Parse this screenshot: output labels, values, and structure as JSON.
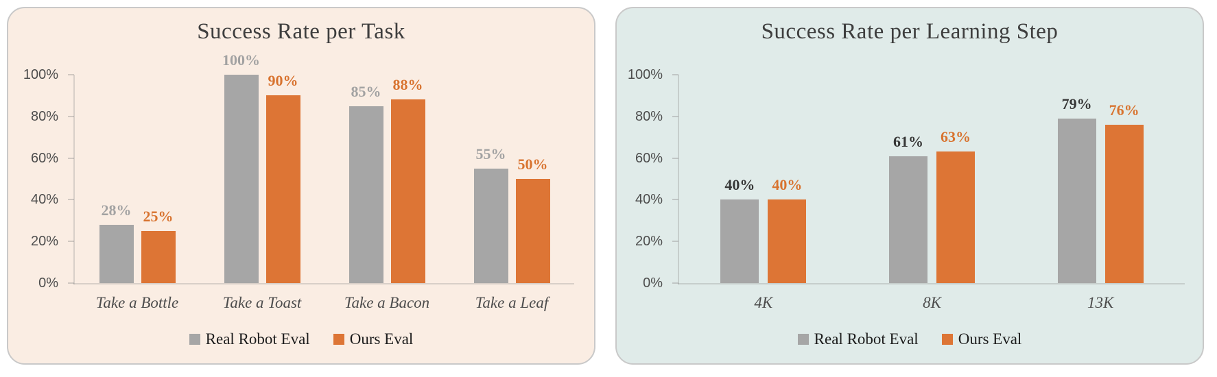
{
  "page": {
    "background": "#FFFFFF"
  },
  "colors": {
    "series_gray": "#A6A6A6",
    "series_orange": "#DD7535",
    "left_card_bg": "#FAEDE3",
    "right_card_bg": "#E0EBE9",
    "card_border": "#C9C9C9",
    "title_text": "#3E3E3E",
    "axis_tick_text": "#4D4D4D",
    "category_text": "#4D4D4D",
    "legend_text": "#1C1C1C"
  },
  "chart_data": [
    {
      "type": "bar",
      "title": "Success Rate per Task",
      "categories": [
        "Take a Bottle",
        "Take a Toast",
        "Take a Bacon",
        "Take a Leaf"
      ],
      "series": [
        {
          "name": "Real Robot Eval",
          "color": "#A6A6A6",
          "label_color": "#A2A2A2",
          "values": [
            28,
            100,
            85,
            55
          ]
        },
        {
          "name": "Ours Eval",
          "color": "#DD7535",
          "label_color": "#D8732F",
          "values": [
            25,
            90,
            88,
            50
          ]
        }
      ],
      "data_label_suffix": "%",
      "ylim": [
        0,
        100
      ],
      "yticks": [
        0,
        20,
        40,
        60,
        80,
        100
      ],
      "ytick_labels": [
        "0%",
        "20%",
        "40%",
        "60%",
        "80%",
        "100%"
      ],
      "grid": false,
      "legend_position": "bottom",
      "card_bg": "#FAEDE3"
    },
    {
      "type": "bar",
      "title": "Success Rate per Learning Step",
      "categories": [
        "4K",
        "8K",
        "13K"
      ],
      "series": [
        {
          "name": "Real Robot Eval",
          "color": "#A6A6A6",
          "label_color": "#363636",
          "values": [
            40,
            61,
            79
          ]
        },
        {
          "name": "Ours Eval",
          "color": "#DD7535",
          "label_color": "#D8732F",
          "values": [
            40,
            63,
            76
          ]
        }
      ],
      "data_label_suffix": "%",
      "ylim": [
        0,
        100
      ],
      "yticks": [
        0,
        20,
        40,
        60,
        80,
        100
      ],
      "ytick_labels": [
        "0%",
        "20%",
        "40%",
        "60%",
        "80%",
        "100%"
      ],
      "grid": false,
      "legend_position": "bottom",
      "card_bg": "#E0EBE9"
    }
  ]
}
